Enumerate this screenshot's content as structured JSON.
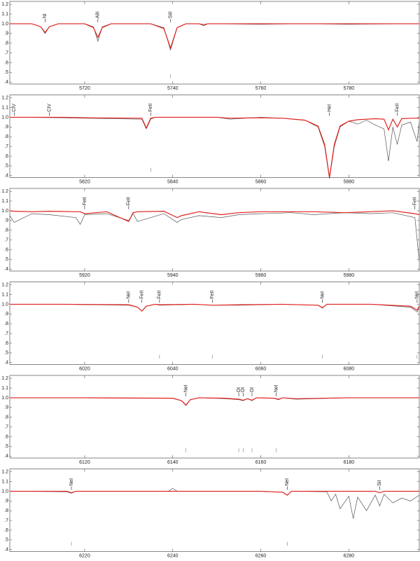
{
  "chart_data": [
    {
      "type": "line",
      "xlim": [
        5703,
        5796
      ],
      "xticks": [
        5720,
        5740,
        5760,
        5780
      ],
      "ylim": [
        0.38,
        1.23
      ],
      "yticks": [
        1.2,
        1.1,
        {
          "value": 1,
          "label": "1.0"
        },
        {
          "value": 0.9,
          "label": ".9"
        },
        {
          "value": 0.8,
          "label": ".8"
        },
        {
          "value": 0.7,
          "label": ".7"
        },
        {
          "value": 0.6,
          "label": ".6"
        },
        {
          "value": 0.5,
          "label": ".5"
        },
        {
          "value": 0.4,
          "label": ".4"
        }
      ],
      "x": [
        5703,
        5708,
        5710,
        5711,
        5712,
        5714,
        5720,
        5722,
        5723,
        5724,
        5726,
        5735,
        5738,
        5739.5,
        5741,
        5743,
        5746,
        5747,
        5748,
        5760,
        5770,
        5780,
        5796
      ],
      "series": [
        {
          "color": "#555555",
          "values": [
            1.0,
            1.0,
            0.97,
            0.9,
            0.97,
            1.0,
            1.0,
            0.97,
            0.82,
            0.97,
            1.0,
            1.0,
            0.96,
            0.73,
            0.96,
            1.0,
            1.0,
            0.98,
            1.0,
            0.995,
            1.0,
            0.995,
            1.0
          ]
        },
        {
          "color": "#e0201b",
          "values": [
            1.0,
            1.0,
            0.97,
            0.91,
            0.97,
            1.0,
            1.0,
            0.96,
            0.86,
            0.96,
            1.0,
            1.0,
            0.95,
            0.75,
            0.96,
            1.0,
            1.0,
            0.99,
            1.0,
            1.0,
            1.0,
            1.0,
            1.0
          ]
        }
      ],
      "lines": [
        {
          "label": "NI",
          "x": 5711
        },
        {
          "label": "AlII",
          "x": 5723
        },
        {
          "label": "SiII",
          "x": 5739.5
        }
      ],
      "markers": [
        5739.5
      ]
    },
    {
      "type": "line",
      "xlim": [
        5803,
        5896
      ],
      "xticks": [
        5820,
        5840,
        5860,
        5880
      ],
      "ylim": [
        0.38,
        1.23
      ],
      "yticks": [
        1.2,
        1.1,
        {
          "value": 1,
          "label": "1.0"
        },
        {
          "value": 0.9,
          "label": ".9"
        },
        {
          "value": 0.8,
          "label": ".8"
        },
        {
          "value": 0.7,
          "label": ".7"
        },
        {
          "value": 0.6,
          "label": ".6"
        },
        {
          "value": 0.5,
          "label": ".5"
        },
        {
          "value": 0.4,
          "label": ".4"
        }
      ],
      "x": [
        5803,
        5815,
        5820,
        5833,
        5834,
        5835,
        5836,
        5850,
        5853,
        5860,
        5865,
        5870,
        5873,
        5874.5,
        5875.6,
        5876.7,
        5878,
        5880,
        5882,
        5884,
        5886,
        5888,
        5889,
        5890,
        5891,
        5892,
        5894,
        5895.5,
        5896
      ],
      "series": [
        {
          "color": "#555555",
          "values": [
            1.0,
            0.995,
            0.99,
            0.98,
            0.88,
            0.98,
            1.0,
            1.0,
            0.98,
            1.0,
            0.99,
            0.97,
            0.9,
            0.7,
            0.37,
            0.7,
            0.9,
            0.96,
            0.93,
            0.97,
            0.92,
            0.88,
            0.55,
            0.9,
            0.72,
            0.92,
            0.95,
            0.75,
            0.95
          ]
        },
        {
          "color": "#e0201b",
          "values": [
            1.0,
            1.0,
            0.995,
            0.99,
            0.89,
            0.99,
            1.0,
            1.0,
            0.99,
            0.995,
            0.99,
            0.97,
            0.91,
            0.72,
            0.38,
            0.72,
            0.91,
            0.96,
            0.975,
            0.98,
            0.985,
            0.98,
            0.87,
            0.98,
            0.9,
            0.985,
            0.99,
            0.99,
            0.99
          ]
        }
      ],
      "lines": [
        {
          "label": "CIV",
          "x": 5804
        },
        {
          "label": "CIV",
          "x": 5812
        },
        {
          "label": "FeII",
          "x": 5835
        },
        {
          "label": "HeI",
          "x": 5875.6
        },
        {
          "label": "FeII",
          "x": 5891
        }
      ],
      "markers": [
        5835
      ]
    },
    {
      "type": "line",
      "xlim": [
        5903,
        5996
      ],
      "xticks": [
        5920,
        5940,
        5960,
        5980
      ],
      "ylim": [
        0.38,
        1.23
      ],
      "yticks": [
        1.2,
        1.1,
        {
          "value": 1,
          "label": "1.0"
        },
        {
          "value": 0.9,
          "label": ".9"
        },
        {
          "value": 0.8,
          "label": ".8"
        },
        {
          "value": 0.7,
          "label": ".7"
        },
        {
          "value": 0.6,
          "label": ".6"
        },
        {
          "value": 0.5,
          "label": ".5"
        },
        {
          "value": 0.4,
          "label": ".4"
        }
      ],
      "x": [
        5903,
        5904,
        5908,
        5912,
        5918,
        5919,
        5920,
        5925,
        5930,
        5931,
        5932,
        5938,
        5941,
        5942,
        5946,
        5951,
        5955,
        5960,
        5967,
        5972,
        5979,
        5985,
        5990,
        5995,
        5996
      ],
      "series": [
        {
          "color": "#555555",
          "values": [
            0.95,
            0.88,
            0.97,
            0.96,
            0.93,
            0.86,
            0.96,
            0.97,
            0.9,
            0.97,
            0.89,
            0.97,
            0.88,
            0.91,
            0.95,
            0.93,
            0.96,
            0.97,
            0.98,
            0.96,
            0.98,
            0.97,
            0.98,
            0.93,
            0.48
          ]
        },
        {
          "color": "#e0201b",
          "values": [
            1.0,
            0.995,
            0.99,
            0.995,
            0.99,
            0.99,
            0.97,
            0.99,
            0.89,
            0.98,
            0.99,
            0.995,
            0.93,
            0.95,
            0.99,
            0.96,
            0.98,
            0.99,
            0.99,
            0.99,
            0.98,
            0.99,
            1.0,
            0.97,
            0.96
          ]
        }
      ],
      "lines": [
        {
          "label": "FeII",
          "x": 5920
        },
        {
          "label": "FeII",
          "x": 5930
        },
        {
          "label": "FeII",
          "x": 5995
        }
      ],
      "markers": []
    },
    {
      "type": "line",
      "xlim": [
        6003,
        6096
      ],
      "xticks": [
        6020,
        6040,
        6060,
        6080
      ],
      "ylim": [
        0.38,
        1.23
      ],
      "yticks": [
        1.2,
        1.1,
        {
          "value": 1,
          "label": "1.0"
        },
        {
          "value": 0.9,
          "label": ".9"
        },
        {
          "value": 0.8,
          "label": ".8"
        },
        {
          "value": 0.7,
          "label": ".7"
        },
        {
          "value": 0.6,
          "label": ".6"
        },
        {
          "value": 0.5,
          "label": ".5"
        },
        {
          "value": 0.4,
          "label": ".4"
        }
      ],
      "x": [
        6003,
        6015,
        6030,
        6032,
        6033,
        6034,
        6036,
        6037,
        6045,
        6049,
        6055,
        6065,
        6073,
        6074,
        6075,
        6085,
        6094,
        6095.5,
        6096
      ],
      "series": [
        {
          "color": "#555555",
          "values": [
            1.0,
            1.0,
            0.99,
            0.97,
            0.93,
            0.98,
            1.0,
            0.99,
            1.0,
            0.99,
            0.99,
            1.0,
            0.99,
            0.96,
            1.0,
            1.0,
            0.97,
            0.92,
            0.96
          ]
        },
        {
          "color": "#e0201b",
          "values": [
            1.0,
            1.0,
            0.995,
            0.97,
            0.93,
            0.98,
            1.0,
            0.995,
            1.0,
            0.99,
            0.995,
            1.0,
            0.99,
            0.965,
            1.0,
            1.0,
            0.98,
            0.94,
            0.98
          ]
        }
      ],
      "lines": [
        {
          "label": "NeI",
          "x": 6030
        },
        {
          "label": "FeII",
          "x": 6033
        },
        {
          "label": "FeII",
          "x": 6037
        },
        {
          "label": "FeII",
          "x": 6049
        },
        {
          "label": "NeI",
          "x": 6074
        },
        {
          "label": "NeI",
          "x": 6095.5
        }
      ],
      "markers": [
        6037,
        6049,
        6074,
        6095.5
      ]
    },
    {
      "type": "line",
      "xlim": [
        6103,
        6196
      ],
      "xticks": [
        6120,
        6140,
        6160,
        6180
      ],
      "ylim": [
        0.38,
        1.23
      ],
      "yticks": [
        1.2,
        1.1,
        {
          "value": 1,
          "label": "1.0"
        },
        {
          "value": 0.9,
          "label": ".9"
        },
        {
          "value": 0.8,
          "label": ".8"
        },
        {
          "value": 0.7,
          "label": ".7"
        },
        {
          "value": 0.6,
          "label": ".6"
        },
        {
          "value": 0.5,
          "label": ".5"
        },
        {
          "value": 0.4,
          "label": ".4"
        }
      ],
      "x": [
        6103,
        6120,
        6140,
        6142,
        6143,
        6144,
        6146,
        6152,
        6155,
        6156,
        6157,
        6158,
        6159,
        6163,
        6164,
        6165,
        6168,
        6180,
        6196
      ],
      "series": [
        {
          "color": "#555555",
          "values": [
            1.0,
            1.0,
            0.995,
            0.97,
            0.92,
            0.98,
            1.0,
            0.99,
            0.98,
            0.97,
            0.99,
            0.97,
            1.0,
            0.995,
            0.98,
            1.0,
            0.985,
            1.0,
            1.0
          ]
        },
        {
          "color": "#e0201b",
          "values": [
            1.0,
            1.0,
            0.995,
            0.97,
            0.925,
            0.98,
            1.0,
            0.995,
            0.985,
            0.975,
            0.99,
            0.975,
            1.0,
            0.995,
            0.985,
            1.0,
            0.99,
            1.0,
            1.0
          ]
        }
      ],
      "lines": [
        {
          "label": "NeI",
          "x": 6143
        },
        {
          "label": "OI",
          "x": 6155
        },
        {
          "label": "OI",
          "x": 6156
        },
        {
          "label": "OI",
          "x": 6158
        },
        {
          "label": "NeI",
          "x": 6163.5
        }
      ],
      "markers": [
        6143,
        6155,
        6156,
        6158,
        6163.5
      ]
    },
    {
      "type": "line",
      "xlim": [
        6203,
        6296
      ],
      "xticks": [
        6220,
        6240,
        6260,
        6280
      ],
      "ylim": [
        0.38,
        1.23
      ],
      "yticks": [
        1.2,
        1.1,
        {
          "value": 1,
          "label": "1.0"
        },
        {
          "value": 0.9,
          "label": ".9"
        },
        {
          "value": 0.8,
          "label": ".8"
        },
        {
          "value": 0.7,
          "label": ".7"
        },
        {
          "value": 0.6,
          "label": ".6"
        },
        {
          "value": 0.5,
          "label": ".5"
        },
        {
          "value": 0.4,
          "label": ".4"
        }
      ],
      "x": [
        6203,
        6216,
        6217,
        6218,
        6239,
        6240,
        6241,
        6260,
        6265,
        6266,
        6267,
        6275,
        6276,
        6277,
        6278,
        6280,
        6281,
        6282,
        6284,
        6286,
        6287,
        6288,
        6290,
        6292,
        6294,
        6296
      ],
      "series": [
        {
          "color": "#555555",
          "values": [
            1.0,
            0.995,
            0.98,
            1.0,
            1.0,
            1.03,
            1.0,
            1.0,
            0.99,
            0.96,
            1.0,
            0.995,
            0.9,
            0.97,
            0.82,
            0.95,
            0.72,
            0.94,
            0.8,
            0.96,
            0.85,
            0.97,
            0.88,
            0.93,
            0.9,
            0.96
          ]
        },
        {
          "color": "#e0201b",
          "values": [
            1.0,
            1.0,
            0.985,
            1.0,
            1.0,
            1.0,
            1.0,
            1.0,
            0.99,
            0.96,
            1.0,
            1.0,
            1.0,
            1.0,
            1.0,
            1.0,
            1.0,
            1.0,
            1.0,
            1.0,
            0.985,
            1.0,
            1.0,
            1.0,
            1.0,
            1.0
          ]
        }
      ],
      "lines": [
        {
          "label": "NeI",
          "x": 6217
        },
        {
          "label": "NeI",
          "x": 6266
        },
        {
          "label": "SiI",
          "x": 6287
        }
      ],
      "markers": [
        6217,
        6266
      ]
    }
  ]
}
